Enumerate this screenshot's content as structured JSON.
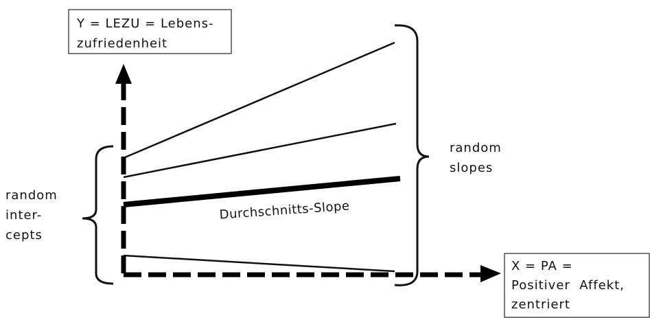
{
  "y_axis_label": {
    "lines": [
      "Y = LEZU = Lebens-",
      "zufriedenheit"
    ]
  },
  "x_axis_label": {
    "lines": [
      "X = PA =",
      "Positiver  Affekt,",
      "zentriert"
    ]
  },
  "slopes_label": {
    "lines": [
      "random",
      "slopes"
    ]
  },
  "intercepts_label": {
    "lines": [
      "random",
      "inter-",
      "cepts"
    ]
  },
  "mean_slope_label": "Durchschnitts-Slope"
}
